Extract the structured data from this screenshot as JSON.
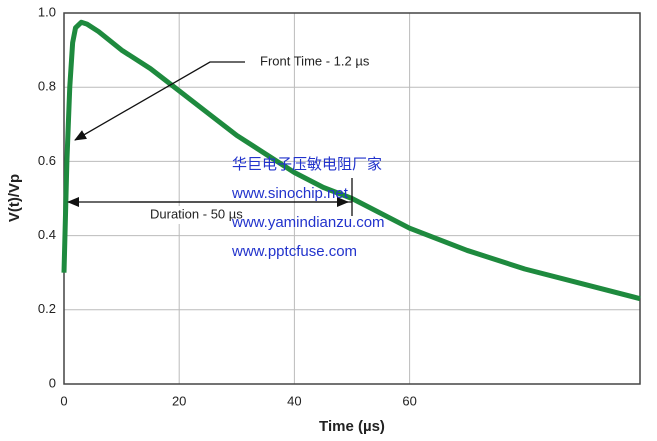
{
  "chart_data": {
    "type": "line",
    "x_label": "Time (µs)",
    "y_label": "V(t)/Vp",
    "x": [
      0,
      0.5,
      1,
      1.5,
      2,
      3,
      4,
      6,
      10,
      15,
      20,
      25,
      30,
      35,
      40,
      45,
      50,
      60,
      70,
      80,
      90,
      100
    ],
    "series": [
      {
        "color": "#1e8a3e",
        "values": [
          0.3,
          0.6,
          0.8,
          0.92,
          0.96,
          0.975,
          0.97,
          0.95,
          0.9,
          0.85,
          0.79,
          0.73,
          0.67,
          0.62,
          0.57,
          0.53,
          0.5,
          0.42,
          0.36,
          0.31,
          0.27,
          0.23
        ]
      }
    ],
    "xlim": [
      0,
      100
    ],
    "ylim": [
      0,
      1
    ],
    "xticks": [
      0,
      20,
      40,
      60
    ],
    "yticks": [
      0,
      0.2,
      0.4,
      0.6,
      0.8,
      {
        "value": 1,
        "label": "1.0"
      }
    ],
    "grid": true,
    "annotations": [
      "Front Time - 1.2 µs",
      "Duration - 50 µs"
    ],
    "watermark": [
      "华巨电子压敏电阻厂家",
      "www.sinochip.net",
      "www.yamindianzu.com",
      "www.pptcfuse.com"
    ]
  }
}
